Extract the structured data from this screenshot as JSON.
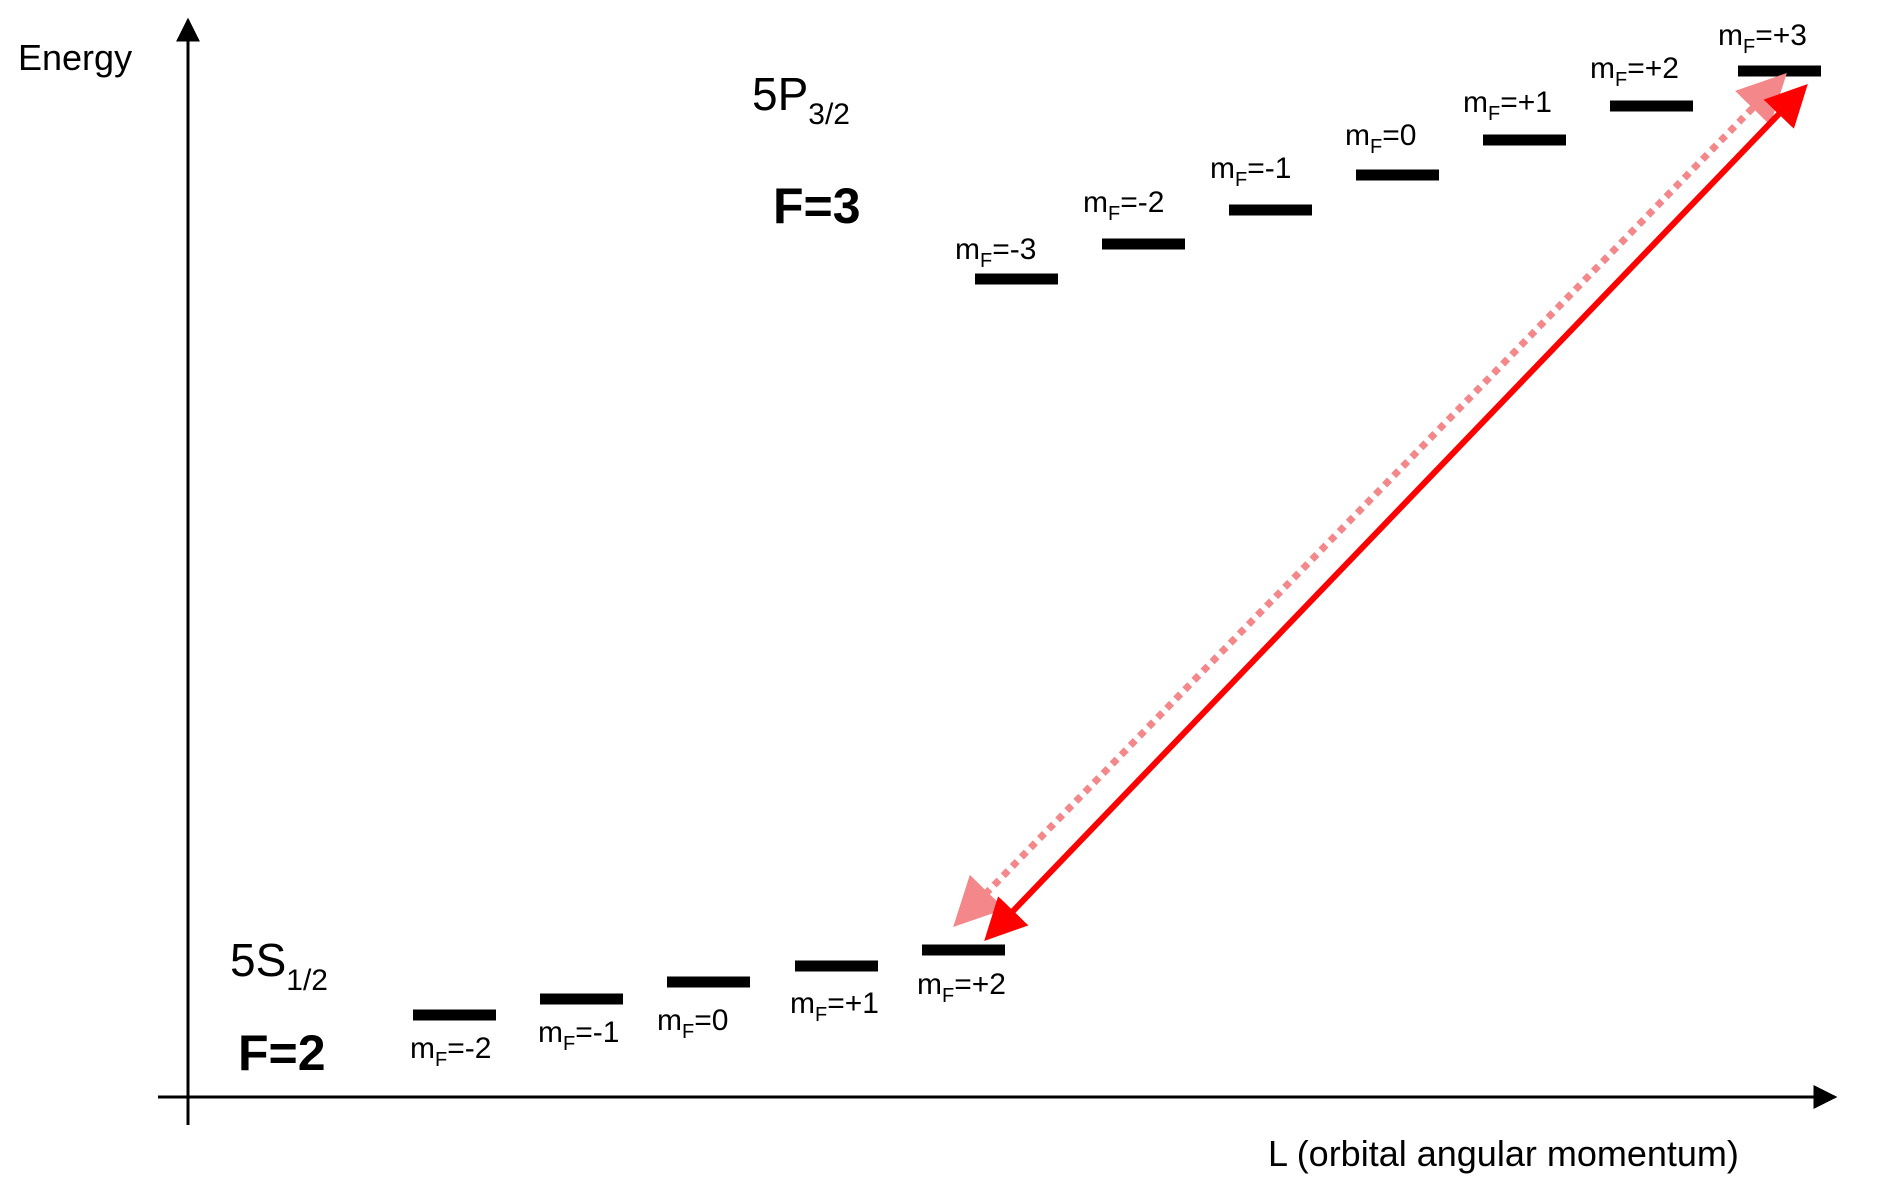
{
  "axes": {
    "y_label": "Energy",
    "x_label": "L (orbital angular momentum)"
  },
  "ground": {
    "state_main": "5S",
    "state_sub": "1/2",
    "f_label": "F=2",
    "levels": [
      {
        "m": "m",
        "sub": "F",
        "val": "=-2"
      },
      {
        "m": "m",
        "sub": "F",
        "val": "=-1"
      },
      {
        "m": "m",
        "sub": "F",
        "val": "=0"
      },
      {
        "m": "m",
        "sub": "F",
        "val": "=+1"
      },
      {
        "m": "m",
        "sub": "F",
        "val": "=+2"
      }
    ]
  },
  "excited": {
    "state_main": "5P",
    "state_sub": "3/2",
    "f_label": "F=3",
    "levels": [
      {
        "m": "m",
        "sub": "F",
        "val": "=-3"
      },
      {
        "m": "m",
        "sub": "F",
        "val": "=-2"
      },
      {
        "m": "m",
        "sub": "F",
        "val": "=-1"
      },
      {
        "m": "m",
        "sub": "F",
        "val": "=0"
      },
      {
        "m": "m",
        "sub": "F",
        "val": "=+1"
      },
      {
        "m": "m",
        "sub": "F",
        "val": "=+2"
      },
      {
        "m": "m",
        "sub": "F",
        "val": "=+3"
      }
    ]
  },
  "transitions": {
    "drive_color": "#ff0000",
    "decay_color": "#f4878a",
    "from": "m_F=+2",
    "to": "m_F=+3"
  }
}
